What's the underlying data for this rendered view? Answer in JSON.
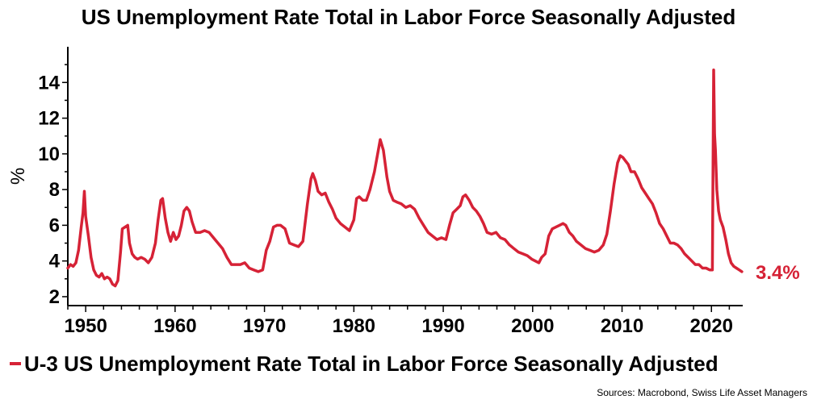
{
  "colors": {
    "series": "#d62236",
    "axis": "#000000"
  },
  "chart_data": {
    "type": "line",
    "title": "US Unemployment Rate Total in Labor Force Seasonally Adjusted",
    "ylabel": "%",
    "xlabel": "",
    "xlim": [
      1948,
      2023.5
    ],
    "ylim": [
      1.5,
      16
    ],
    "yticks": [
      2,
      4,
      6,
      8,
      10,
      12,
      14
    ],
    "xticks": [
      1950,
      1960,
      1970,
      1980,
      1990,
      2000,
      2010,
      2020
    ],
    "grid": false,
    "legend_position": "bottom-left",
    "last_value_label": "3.4%",
    "series": [
      {
        "name": "U-3 US Unemployment Rate Total in Labor Force Seasonally Adjusted",
        "x": [
          1948.0,
          1948.3,
          1948.6,
          1948.9,
          1949.2,
          1949.5,
          1949.7,
          1949.85,
          1950.0,
          1950.3,
          1950.6,
          1950.9,
          1951.2,
          1951.5,
          1951.8,
          1952.1,
          1952.4,
          1952.7,
          1953.0,
          1953.3,
          1953.6,
          1953.9,
          1954.1,
          1954.4,
          1954.7,
          1954.9,
          1955.2,
          1955.5,
          1955.8,
          1956.2,
          1956.6,
          1957.0,
          1957.4,
          1957.8,
          1958.1,
          1958.4,
          1958.6,
          1958.9,
          1959.2,
          1959.5,
          1959.8,
          1960.1,
          1960.4,
          1960.7,
          1961.0,
          1961.3,
          1961.6,
          1961.9,
          1962.3,
          1962.8,
          1963.3,
          1963.8,
          1964.3,
          1964.8,
          1965.3,
          1965.8,
          1966.3,
          1966.8,
          1967.3,
          1967.8,
          1968.3,
          1968.8,
          1969.3,
          1969.8,
          1970.2,
          1970.6,
          1971.0,
          1971.4,
          1971.8,
          1972.3,
          1972.8,
          1973.3,
          1973.8,
          1974.3,
          1974.8,
          1975.2,
          1975.4,
          1975.7,
          1976.0,
          1976.4,
          1976.8,
          1977.2,
          1977.6,
          1978.0,
          1978.5,
          1979.0,
          1979.5,
          1980.0,
          1980.3,
          1980.6,
          1981.0,
          1981.4,
          1981.8,
          1982.3,
          1982.7,
          1982.95,
          1983.3,
          1983.7,
          1984.0,
          1984.4,
          1984.8,
          1985.3,
          1985.8,
          1986.3,
          1986.8,
          1987.3,
          1987.8,
          1988.3,
          1988.8,
          1989.3,
          1989.8,
          1990.3,
          1990.7,
          1991.1,
          1991.5,
          1991.9,
          1992.2,
          1992.5,
          1992.9,
          1993.3,
          1993.7,
          1994.1,
          1994.5,
          1994.9,
          1995.4,
          1995.9,
          1996.4,
          1996.9,
          1997.4,
          1997.9,
          1998.4,
          1998.9,
          1999.4,
          1999.9,
          2000.3,
          2000.7,
          2001.0,
          2001.4,
          2001.8,
          2002.2,
          2002.6,
          2003.0,
          2003.4,
          2003.7,
          2004.1,
          2004.5,
          2004.9,
          2005.4,
          2005.9,
          2006.4,
          2006.9,
          2007.4,
          2007.9,
          2008.3,
          2008.7,
          2009.1,
          2009.5,
          2009.8,
          2010.1,
          2010.4,
          2010.7,
          2011.0,
          2011.4,
          2011.8,
          2012.2,
          2012.6,
          2013.0,
          2013.4,
          2013.8,
          2014.2,
          2014.6,
          2015.0,
          2015.4,
          2015.8,
          2016.2,
          2016.6,
          2017.0,
          2017.4,
          2017.8,
          2018.2,
          2018.6,
          2019.0,
          2019.4,
          2019.8,
          2020.1,
          2020.25,
          2020.35,
          2020.45,
          2020.6,
          2020.8,
          2021.0,
          2021.3,
          2021.6,
          2021.9,
          2022.2,
          2022.5,
          2022.8,
          2023.1,
          2023.4
        ],
        "values": [
          3.6,
          3.8,
          3.7,
          3.9,
          4.6,
          5.9,
          6.7,
          7.9,
          6.5,
          5.4,
          4.2,
          3.5,
          3.2,
          3.1,
          3.3,
          3.0,
          3.1,
          3.0,
          2.7,
          2.6,
          2.9,
          4.5,
          5.8,
          5.9,
          6.0,
          5.0,
          4.4,
          4.2,
          4.1,
          4.2,
          4.1,
          3.9,
          4.2,
          5.0,
          6.3,
          7.4,
          7.5,
          6.4,
          5.6,
          5.1,
          5.6,
          5.2,
          5.4,
          6.0,
          6.8,
          7.0,
          6.8,
          6.2,
          5.6,
          5.6,
          5.7,
          5.6,
          5.3,
          5.0,
          4.7,
          4.2,
          3.8,
          3.8,
          3.8,
          3.9,
          3.6,
          3.5,
          3.4,
          3.5,
          4.6,
          5.1,
          5.9,
          6.0,
          6.0,
          5.8,
          5.0,
          4.9,
          4.8,
          5.1,
          7.2,
          8.6,
          8.9,
          8.5,
          7.9,
          7.7,
          7.8,
          7.3,
          6.9,
          6.4,
          6.1,
          5.9,
          5.7,
          6.3,
          7.5,
          7.6,
          7.4,
          7.4,
          8.0,
          9.0,
          10.1,
          10.8,
          10.2,
          8.7,
          7.9,
          7.4,
          7.3,
          7.2,
          7.0,
          7.1,
          6.9,
          6.4,
          6.0,
          5.6,
          5.4,
          5.2,
          5.3,
          5.2,
          6.0,
          6.7,
          6.9,
          7.1,
          7.6,
          7.7,
          7.4,
          7.0,
          6.8,
          6.5,
          6.1,
          5.6,
          5.5,
          5.6,
          5.3,
          5.2,
          4.9,
          4.7,
          4.5,
          4.4,
          4.3,
          4.1,
          4.0,
          3.9,
          4.2,
          4.4,
          5.4,
          5.8,
          5.9,
          6.0,
          6.1,
          6.0,
          5.6,
          5.4,
          5.1,
          4.9,
          4.7,
          4.6,
          4.5,
          4.6,
          4.9,
          5.5,
          6.8,
          8.3,
          9.5,
          9.9,
          9.8,
          9.6,
          9.4,
          9.0,
          9.0,
          8.6,
          8.1,
          7.8,
          7.5,
          7.2,
          6.7,
          6.1,
          5.8,
          5.4,
          5.0,
          5.0,
          4.9,
          4.7,
          4.4,
          4.2,
          4.0,
          3.8,
          3.8,
          3.6,
          3.6,
          3.5,
          3.5,
          14.7,
          11.1,
          10.2,
          8.0,
          6.8,
          6.3,
          5.9,
          5.2,
          4.4,
          3.9,
          3.7,
          3.6,
          3.5,
          3.4
        ]
      }
    ]
  },
  "legend": {
    "label": "U-3 US Unemployment Rate Total in Labor Force Seasonally Adjusted"
  },
  "source": "Sources: Macrobond, Swiss Life Asset Managers"
}
